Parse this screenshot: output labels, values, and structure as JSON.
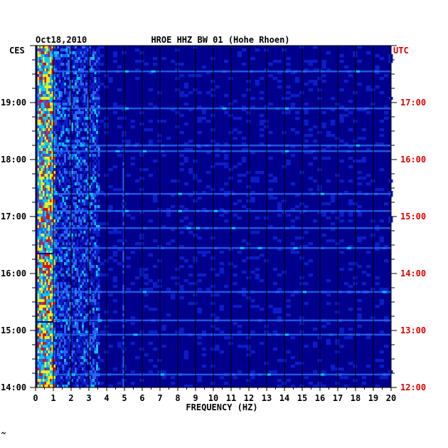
{
  "chart_data": {
    "type": "heatmap",
    "title": "HROE HHZ BW 01 (Hohe Rhoen)",
    "date": "Oct18,2010",
    "left_timezone_label": "CES",
    "right_timezone_label": "UTC",
    "xlabel": "FREQUENCY (HZ)",
    "xlim": [
      0,
      20
    ],
    "x_ticks": [
      "0",
      "1",
      "2",
      "3",
      "4",
      "5",
      "6",
      "7",
      "8",
      "9",
      "10",
      "11",
      "12",
      "13",
      "14",
      "15",
      "16",
      "17",
      "18",
      "19",
      "20"
    ],
    "left_time_ticks": [
      "14:00",
      "15:00",
      "16:00",
      "17:00",
      "18:00",
      "19:00"
    ],
    "right_time_ticks": [
      "12:00",
      "13:00",
      "14:00",
      "15:00",
      "16:00",
      "17:00"
    ],
    "time_range_hours": [
      14.0,
      20.0
    ],
    "grid": true,
    "colors": {
      "background": "#00008c",
      "low": "#0a1ec8",
      "mid": "#2864f0",
      "cyan": "#00c8ff",
      "yellow": "#f0f000",
      "red": "#e01010",
      "right_labels": "#e00000",
      "text": "#000000"
    },
    "bright_bands_hours": [
      14.23,
      14.93,
      15.18,
      15.68,
      16.45,
      16.8,
      17.1,
      17.4,
      18.15,
      18.25,
      18.9,
      19.55
    ]
  }
}
